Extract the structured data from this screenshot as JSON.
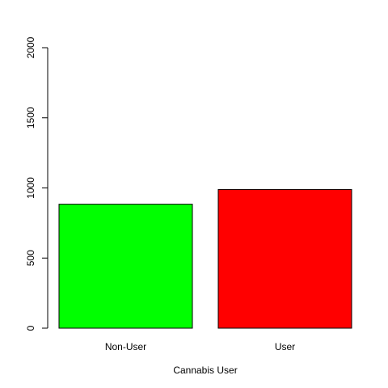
{
  "chart_data": {
    "type": "bar",
    "title": "",
    "xlabel": "Cannabis User",
    "ylabel": "",
    "categories": [
      "Non-User",
      "User"
    ],
    "values": [
      884,
      989
    ],
    "colors": [
      "#00ff00",
      "#ff0000"
    ],
    "ylim": [
      0,
      2000
    ],
    "yticks": [
      0,
      500,
      1000,
      1500,
      2000
    ],
    "ytick_labels": [
      "0",
      "500",
      "1000",
      "1500",
      "2000"
    ],
    "grid": false,
    "legend": "none"
  }
}
